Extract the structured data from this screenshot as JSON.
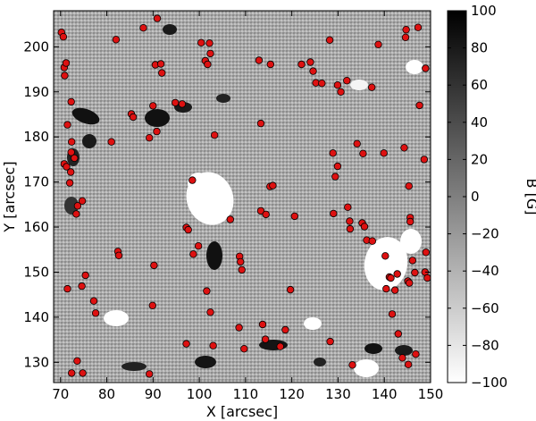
{
  "chart_data": {
    "type": "scatter",
    "xlabel": "X [arcsec]",
    "ylabel": "Y [arcsec]",
    "colorbar_label": "B [G]",
    "xlim": [
      68.5,
      150
    ],
    "ylim": [
      125.5,
      208
    ],
    "xticks": [
      70,
      80,
      90,
      100,
      110,
      120,
      130,
      140,
      150
    ],
    "yticks": [
      130,
      140,
      150,
      160,
      170,
      180,
      190,
      200
    ],
    "colorbar_range": [
      -100,
      100
    ],
    "colorbar_ticks": [
      100,
      80,
      60,
      40,
      20,
      0,
      -20,
      -40,
      -60,
      -80,
      -100
    ],
    "colorbar_tick_labels": [
      "100",
      "80",
      "60",
      "40",
      "20",
      "0",
      "−20",
      "−40",
      "−60",
      "−80",
      "−100"
    ],
    "colormap": "gray (white = -100 G, black = +100 G)",
    "marker_color": "#dd1111",
    "marker_edge_color": "#000000",
    "background_image": "magnetogram (line-of-sight field B)",
    "points": [
      {
        "x": 70.2,
        "y": 203.2
      },
      {
        "x": 70.6,
        "y": 202.2
      },
      {
        "x": 70.8,
        "y": 195.4
      },
      {
        "x": 71.2,
        "y": 196.4
      },
      {
        "x": 70.9,
        "y": 193.6
      },
      {
        "x": 72.3,
        "y": 187.8
      },
      {
        "x": 71.5,
        "y": 182.7
      },
      {
        "x": 72.4,
        "y": 178.9
      },
      {
        "x": 72.3,
        "y": 176.6
      },
      {
        "x": 73.0,
        "y": 175.3
      },
      {
        "x": 70.8,
        "y": 174.0
      },
      {
        "x": 71.3,
        "y": 173.4
      },
      {
        "x": 72.2,
        "y": 172.2
      },
      {
        "x": 72.0,
        "y": 169.8
      },
      {
        "x": 73.7,
        "y": 164.7
      },
      {
        "x": 74.7,
        "y": 165.8
      },
      {
        "x": 73.4,
        "y": 162.9
      },
      {
        "x": 71.5,
        "y": 146.3
      },
      {
        "x": 74.6,
        "y": 146.9
      },
      {
        "x": 75.4,
        "y": 149.3
      },
      {
        "x": 77.2,
        "y": 143.6
      },
      {
        "x": 77.6,
        "y": 140.9
      },
      {
        "x": 72.4,
        "y": 127.6
      },
      {
        "x": 73.6,
        "y": 130.3
      },
      {
        "x": 74.8,
        "y": 127.6
      },
      {
        "x": 81.0,
        "y": 178.9
      },
      {
        "x": 82.0,
        "y": 201.6
      },
      {
        "x": 82.4,
        "y": 154.6
      },
      {
        "x": 82.6,
        "y": 153.7
      },
      {
        "x": 85.3,
        "y": 185.1
      },
      {
        "x": 85.7,
        "y": 184.4
      },
      {
        "x": 87.9,
        "y": 204.2
      },
      {
        "x": 89.2,
        "y": 179.8
      },
      {
        "x": 90.0,
        "y": 186.9
      },
      {
        "x": 90.8,
        "y": 181.2
      },
      {
        "x": 90.5,
        "y": 196.0
      },
      {
        "x": 91.7,
        "y": 196.2
      },
      {
        "x": 90.9,
        "y": 206.3
      },
      {
        "x": 91.9,
        "y": 194.2
      },
      {
        "x": 90.2,
        "y": 151.5
      },
      {
        "x": 89.9,
        "y": 142.6
      },
      {
        "x": 89.2,
        "y": 127.4
      },
      {
        "x": 94.8,
        "y": 187.6
      },
      {
        "x": 96.3,
        "y": 187.3
      },
      {
        "x": 97.2,
        "y": 159.9
      },
      {
        "x": 97.6,
        "y": 159.4
      },
      {
        "x": 98.5,
        "y": 170.4
      },
      {
        "x": 98.7,
        "y": 154.0
      },
      {
        "x": 99.8,
        "y": 155.8
      },
      {
        "x": 97.2,
        "y": 134.1
      },
      {
        "x": 100.4,
        "y": 200.9
      },
      {
        "x": 102.2,
        "y": 200.8
      },
      {
        "x": 101.3,
        "y": 196.9
      },
      {
        "x": 101.8,
        "y": 196.1
      },
      {
        "x": 102.4,
        "y": 198.5
      },
      {
        "x": 103.3,
        "y": 180.4
      },
      {
        "x": 101.6,
        "y": 145.8
      },
      {
        "x": 102.4,
        "y": 141.1
      },
      {
        "x": 103.0,
        "y": 133.7
      },
      {
        "x": 106.7,
        "y": 161.7
      },
      {
        "x": 108.7,
        "y": 153.5
      },
      {
        "x": 108.9,
        "y": 152.3
      },
      {
        "x": 109.2,
        "y": 150.5
      },
      {
        "x": 108.6,
        "y": 137.7
      },
      {
        "x": 109.7,
        "y": 133.0
      },
      {
        "x": 112.9,
        "y": 197.0
      },
      {
        "x": 113.3,
        "y": 183.0
      },
      {
        "x": 113.3,
        "y": 163.6
      },
      {
        "x": 113.7,
        "y": 138.4
      },
      {
        "x": 114.3,
        "y": 135.1
      },
      {
        "x": 114.4,
        "y": 162.8
      },
      {
        "x": 115.3,
        "y": 169.0
      },
      {
        "x": 115.9,
        "y": 169.2
      },
      {
        "x": 115.4,
        "y": 196.1
      },
      {
        "x": 117.5,
        "y": 133.5
      },
      {
        "x": 118.6,
        "y": 137.2
      },
      {
        "x": 119.7,
        "y": 146.1
      },
      {
        "x": 120.6,
        "y": 162.4
      },
      {
        "x": 122.1,
        "y": 196.1
      },
      {
        "x": 124.0,
        "y": 196.6
      },
      {
        "x": 124.6,
        "y": 194.6
      },
      {
        "x": 125.2,
        "y": 192.0
      },
      {
        "x": 126.5,
        "y": 191.9
      },
      {
        "x": 128.2,
        "y": 201.5
      },
      {
        "x": 128.9,
        "y": 176.4
      },
      {
        "x": 129.4,
        "y": 171.2
      },
      {
        "x": 129.9,
        "y": 173.5
      },
      {
        "x": 129.0,
        "y": 163.0
      },
      {
        "x": 128.3,
        "y": 134.6
      },
      {
        "x": 129.9,
        "y": 191.5
      },
      {
        "x": 130.6,
        "y": 190.0
      },
      {
        "x": 131.9,
        "y": 192.5
      },
      {
        "x": 132.1,
        "y": 164.4
      },
      {
        "x": 132.5,
        "y": 161.3
      },
      {
        "x": 132.6,
        "y": 159.6
      },
      {
        "x": 133.1,
        "y": 129.4
      },
      {
        "x": 134.1,
        "y": 178.5
      },
      {
        "x": 135.2,
        "y": 160.9
      },
      {
        "x": 135.7,
        "y": 160.1
      },
      {
        "x": 135.4,
        "y": 176.3
      },
      {
        "x": 136.2,
        "y": 157.1
      },
      {
        "x": 137.3,
        "y": 191.0
      },
      {
        "x": 137.4,
        "y": 156.9
      },
      {
        "x": 138.7,
        "y": 200.5
      },
      {
        "x": 139.9,
        "y": 176.4
      },
      {
        "x": 140.2,
        "y": 153.6
      },
      {
        "x": 140.4,
        "y": 146.3
      },
      {
        "x": 141.1,
        "y": 148.9
      },
      {
        "x": 141.4,
        "y": 148.7
      },
      {
        "x": 141.7,
        "y": 140.7
      },
      {
        "x": 142.3,
        "y": 146.0
      },
      {
        "x": 142.8,
        "y": 149.6
      },
      {
        "x": 143.0,
        "y": 136.3
      },
      {
        "x": 143.9,
        "y": 131.0
      },
      {
        "x": 144.7,
        "y": 203.8
      },
      {
        "x": 144.6,
        "y": 202.1
      },
      {
        "x": 144.3,
        "y": 177.6
      },
      {
        "x": 145.3,
        "y": 169.1
      },
      {
        "x": 145.6,
        "y": 162.1
      },
      {
        "x": 145.6,
        "y": 161.2
      },
      {
        "x": 145.1,
        "y": 148.0
      },
      {
        "x": 145.4,
        "y": 147.6
      },
      {
        "x": 146.1,
        "y": 152.6
      },
      {
        "x": 146.6,
        "y": 149.9
      },
      {
        "x": 145.2,
        "y": 129.5
      },
      {
        "x": 146.8,
        "y": 131.8
      },
      {
        "x": 147.3,
        "y": 204.3
      },
      {
        "x": 147.6,
        "y": 187.0
      },
      {
        "x": 148.6,
        "y": 175.0
      },
      {
        "x": 148.8,
        "y": 150.0
      },
      {
        "x": 148.9,
        "y": 195.2
      },
      {
        "x": 149.0,
        "y": 154.4
      },
      {
        "x": 149.3,
        "y": 148.7
      }
    ]
  }
}
